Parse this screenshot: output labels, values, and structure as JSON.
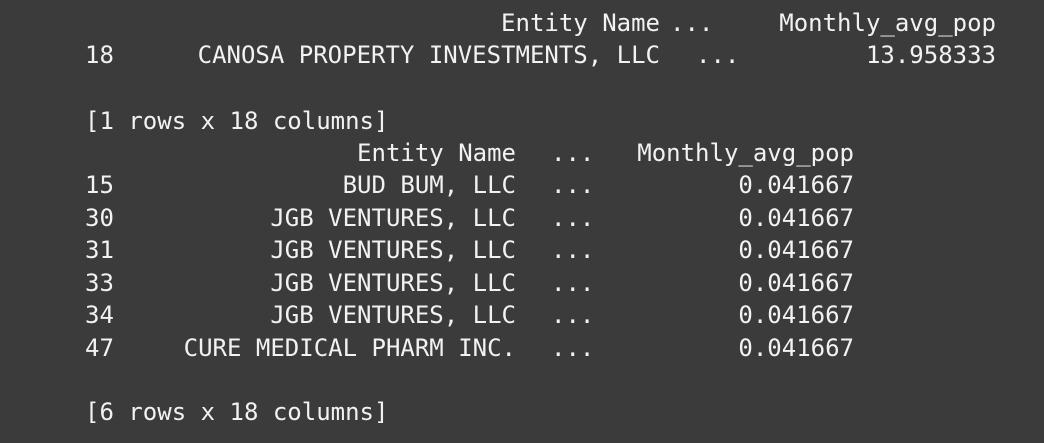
{
  "output": {
    "block1": {
      "header": {
        "entity_name": "Entity Name",
        "ellipsis": "...",
        "monthly_avg_pop": "Monthly_avg_pop"
      },
      "rows": [
        {
          "index": "18",
          "entity_name": "CANOSA PROPERTY INVESTMENTS, LLC",
          "ellipsis": "...",
          "monthly_avg_pop": "13.958333"
        }
      ],
      "summary": "[1 rows x 18 columns]"
    },
    "block2": {
      "header": {
        "entity_name": "Entity Name",
        "ellipsis": "...",
        "monthly_avg_pop": "Monthly_avg_pop"
      },
      "rows": [
        {
          "index": "15",
          "entity_name": "BUD BUM, LLC",
          "ellipsis": "...",
          "monthly_avg_pop": "0.041667"
        },
        {
          "index": "30",
          "entity_name": "JGB VENTURES, LLC",
          "ellipsis": "...",
          "monthly_avg_pop": "0.041667"
        },
        {
          "index": "31",
          "entity_name": "JGB VENTURES, LLC",
          "ellipsis": "...",
          "monthly_avg_pop": "0.041667"
        },
        {
          "index": "33",
          "entity_name": "JGB VENTURES, LLC",
          "ellipsis": "...",
          "monthly_avg_pop": "0.041667"
        },
        {
          "index": "34",
          "entity_name": "JGB VENTURES, LLC",
          "ellipsis": "...",
          "monthly_avg_pop": "0.041667"
        },
        {
          "index": "47",
          "entity_name": "CURE MEDICAL PHARM INC.",
          "ellipsis": "...",
          "monthly_avg_pop": "0.041667"
        }
      ],
      "summary": "[6 rows x 18 columns]"
    }
  }
}
